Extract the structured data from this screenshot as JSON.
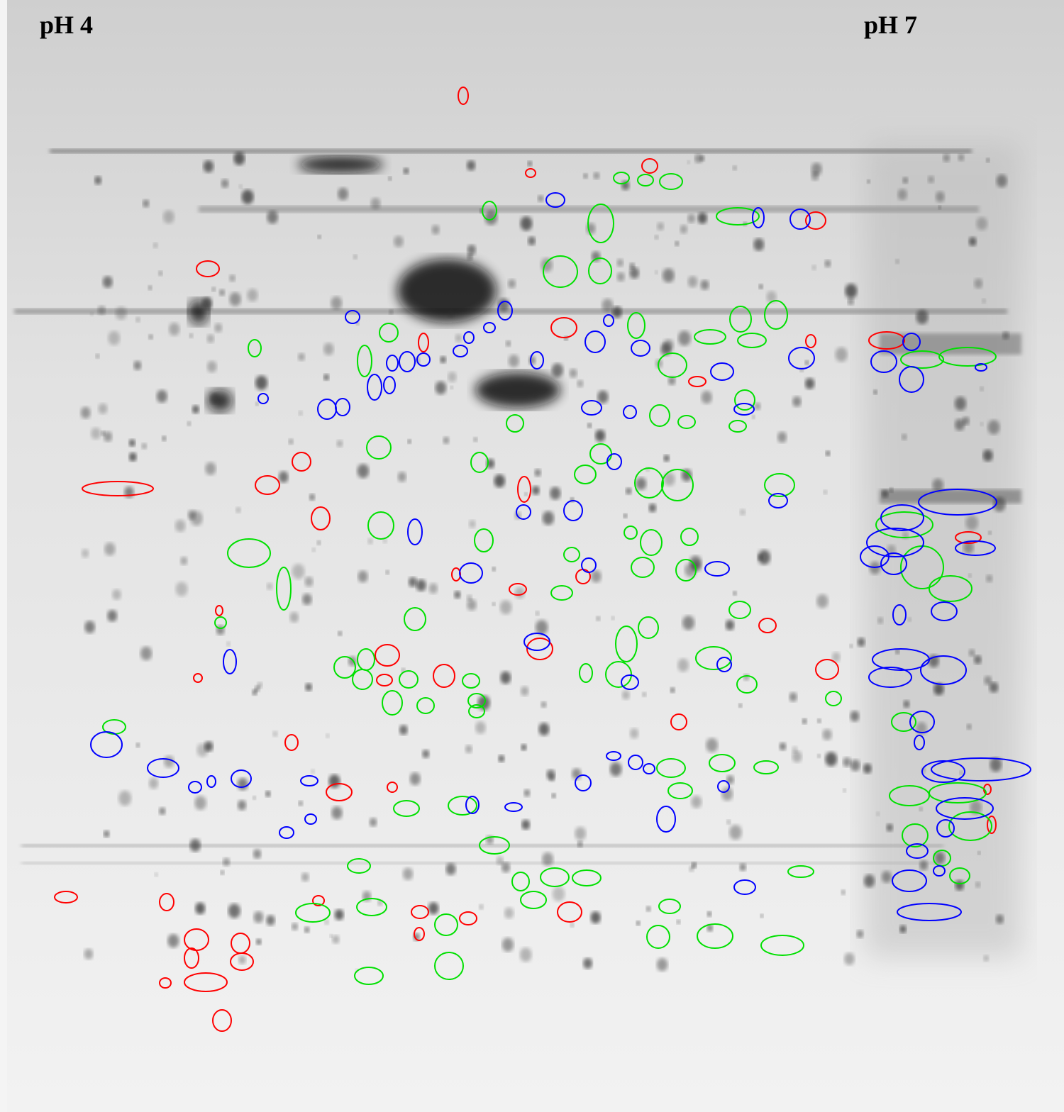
{
  "labels": {
    "left": "pH 4",
    "right": "pH 7"
  },
  "outline_colors": {
    "red": "#ff0000",
    "green": "#00e000",
    "blue": "#0000ff"
  }
}
